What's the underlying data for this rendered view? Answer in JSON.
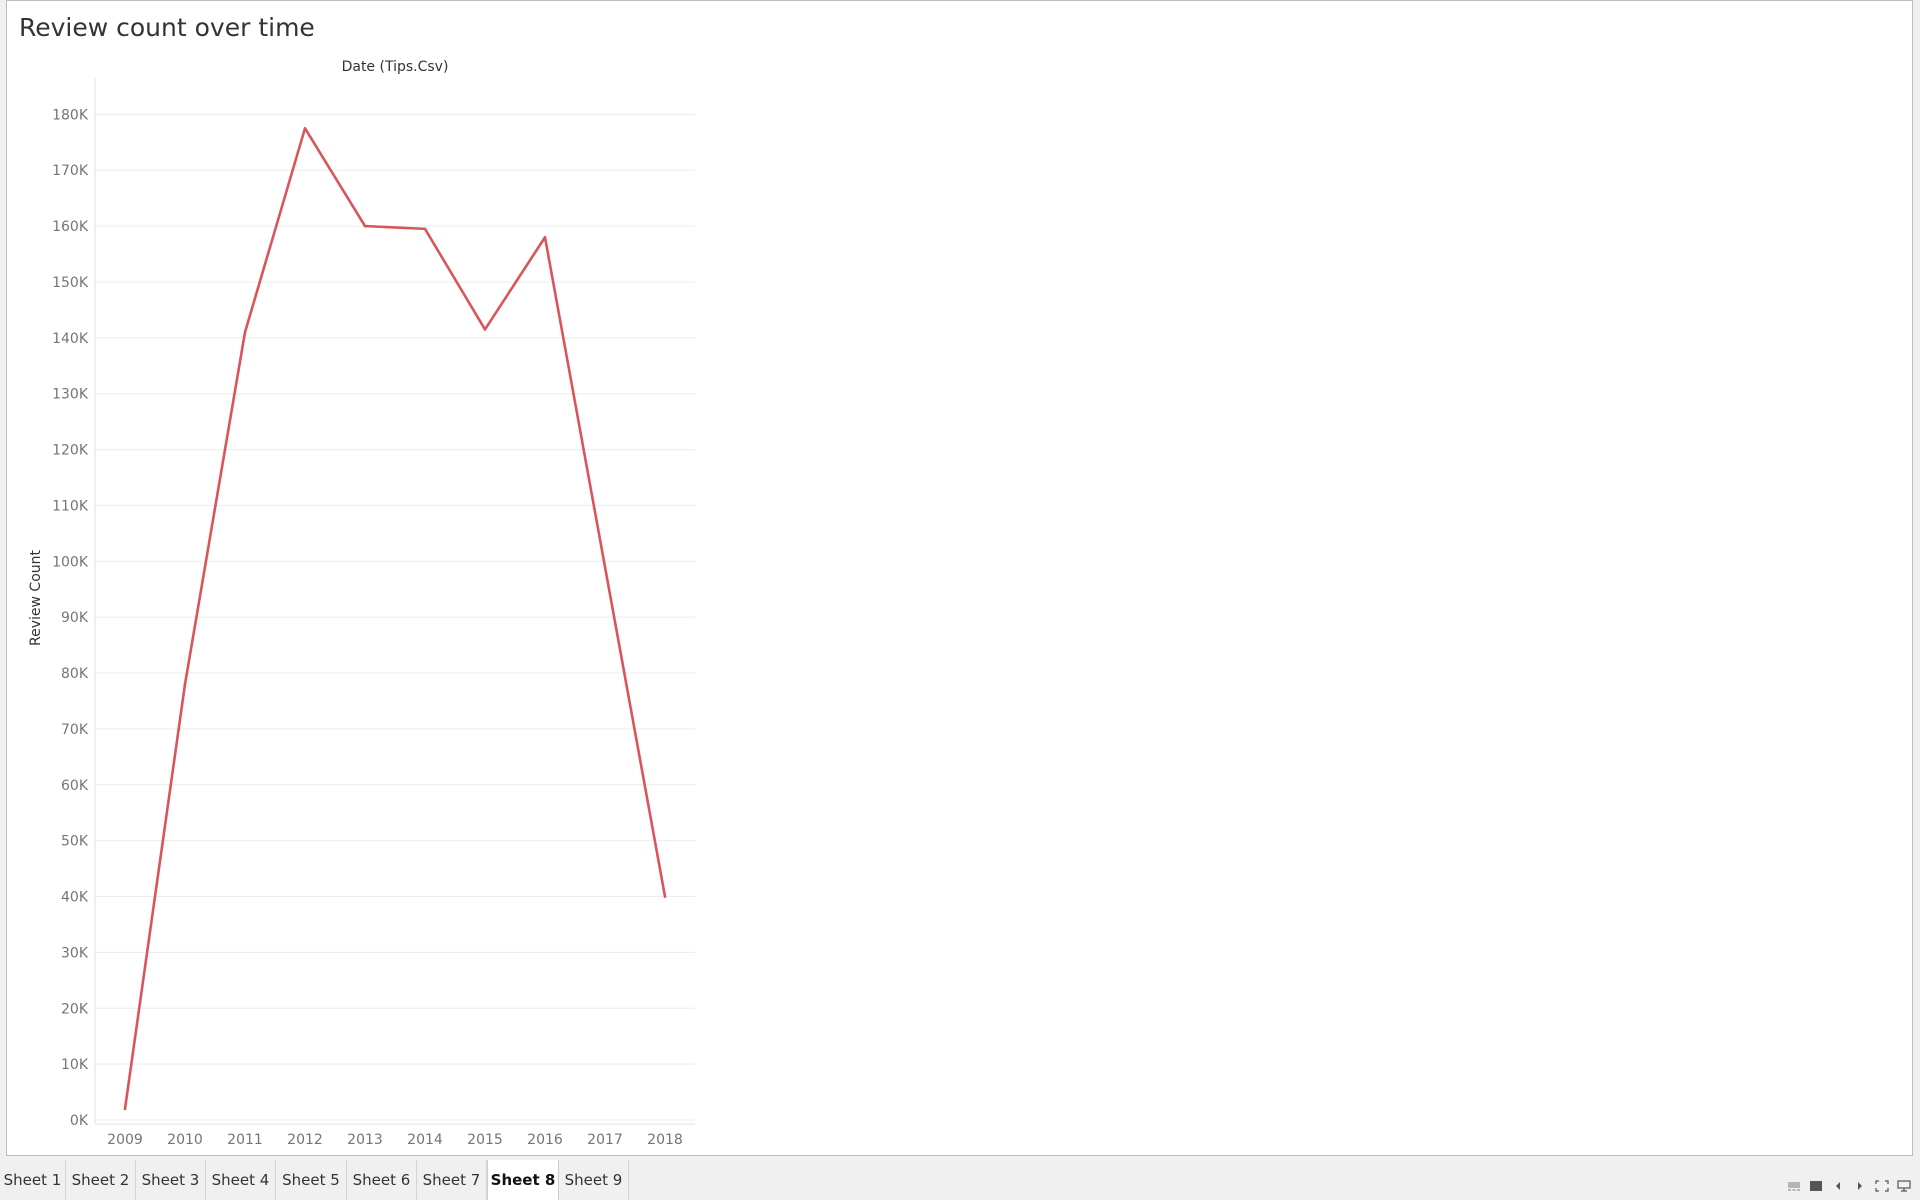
{
  "worksheet": {
    "title": "Review count over time"
  },
  "chart_data": {
    "type": "line",
    "title": "",
    "header": "Date (Tips.Csv)",
    "xlabel": "",
    "ylabel": "Review Count",
    "x": [
      "2009",
      "2010",
      "2011",
      "2012",
      "2013",
      "2014",
      "2015",
      "2016",
      "2017",
      "2018"
    ],
    "series": [
      {
        "values": [
          2000,
          78000,
          141000,
          177500,
          160000,
          159500,
          141500,
          158000,
          99000,
          40000
        ],
        "color": "#d9555a"
      }
    ],
    "yticks": [
      0,
      10000,
      20000,
      30000,
      40000,
      50000,
      60000,
      70000,
      80000,
      90000,
      100000,
      110000,
      120000,
      130000,
      140000,
      150000,
      160000,
      170000,
      180000
    ],
    "ytick_labels": [
      "0K",
      "10K",
      "20K",
      "30K",
      "40K",
      "50K",
      "60K",
      "70K",
      "80K",
      "90K",
      "100K",
      "110K",
      "120K",
      "130K",
      "140K",
      "150K",
      "160K",
      "170K",
      "180K"
    ],
    "ylim": [
      0,
      184000
    ],
    "grid": true,
    "legend": "none"
  },
  "tabs": [
    {
      "label": "Sheet 1",
      "active": false
    },
    {
      "label": "Sheet 2",
      "active": false
    },
    {
      "label": "Sheet 3",
      "active": false
    },
    {
      "label": "Sheet 4",
      "active": false
    },
    {
      "label": "Sheet 5",
      "active": false
    },
    {
      "label": "Sheet 6",
      "active": false
    },
    {
      "label": "Sheet 7",
      "active": false
    },
    {
      "label": "Sheet 8",
      "active": true
    },
    {
      "label": "Sheet 9",
      "active": false
    }
  ],
  "controls": [
    {
      "icon": "show-filmstrip-icon"
    },
    {
      "icon": "show-tabs-icon"
    },
    {
      "icon": "previous-sheet-icon"
    },
    {
      "icon": "next-sheet-icon"
    },
    {
      "icon": "fit-to-screen-icon"
    },
    {
      "icon": "presentation-mode-icon"
    }
  ]
}
